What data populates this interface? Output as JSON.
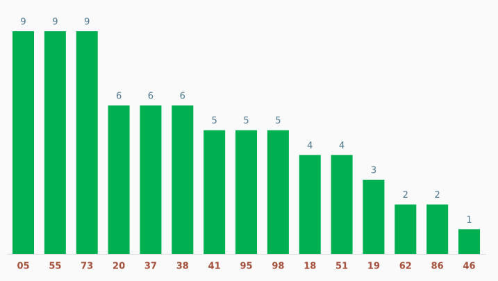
{
  "chart_data": {
    "type": "bar",
    "categories": [
      "05",
      "55",
      "73",
      "20",
      "37",
      "38",
      "41",
      "95",
      "98",
      "18",
      "51",
      "19",
      "62",
      "86",
      "46"
    ],
    "values": [
      9,
      9,
      9,
      6,
      6,
      6,
      5,
      5,
      5,
      4,
      4,
      3,
      2,
      2,
      1
    ],
    "color": "#00b050"
  }
}
